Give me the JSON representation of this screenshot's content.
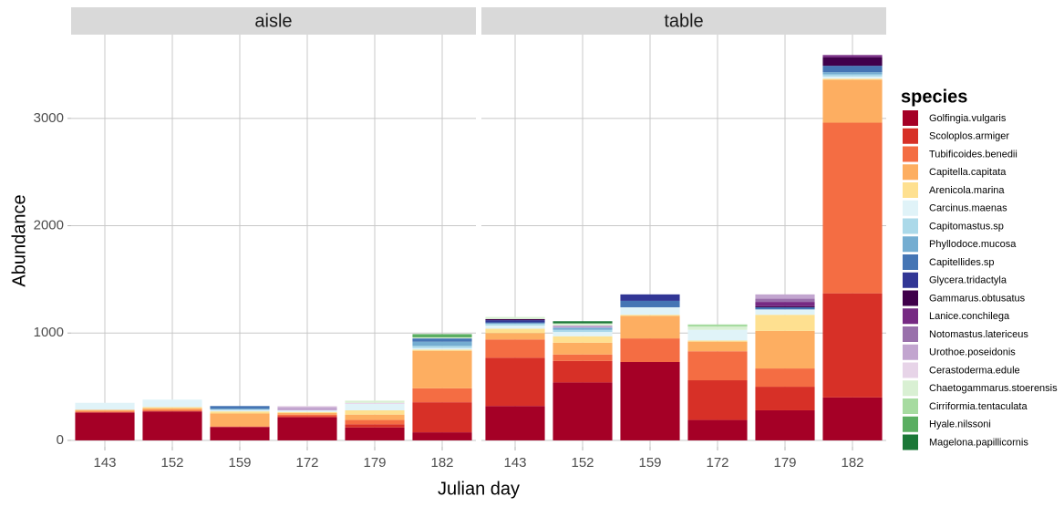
{
  "chart_data": {
    "type": "bar",
    "stacked": true,
    "x_label": "Julian day",
    "y_label": "Abundance",
    "legend_title": "species",
    "facets": [
      "aisle",
      "table"
    ],
    "categories": [
      "143",
      "152",
      "159",
      "172",
      "179",
      "182"
    ],
    "ylim": [
      -60,
      3780
    ],
    "yticks": [
      0,
      1000,
      2000,
      3000
    ],
    "grid": true,
    "series": [
      {
        "name": "Golfingia.vulgaris",
        "color": "#a50026",
        "values": [
          [
            260,
            270,
            125,
            215,
            120,
            75
          ],
          [
            320,
            540,
            730,
            190,
            280,
            400
          ]
        ]
      },
      {
        "name": "Scoloplos.armiger",
        "color": "#d73027",
        "values": [
          [
            0,
            0,
            0,
            10,
            30,
            280
          ],
          [
            450,
            200,
            0,
            370,
            220,
            970
          ]
        ]
      },
      {
        "name": "Tubificoides.benedii",
        "color": "#f46d43",
        "values": [
          [
            10,
            15,
            5,
            15,
            40,
            130
          ],
          [
            170,
            60,
            220,
            270,
            170,
            1590
          ]
        ]
      },
      {
        "name": "Capitella.capitata",
        "color": "#fdae61",
        "values": [
          [
            15,
            15,
            120,
            15,
            50,
            350
          ],
          [
            60,
            110,
            210,
            90,
            350,
            400
          ]
        ]
      },
      {
        "name": "Arenicola.marina",
        "color": "#fee090",
        "values": [
          [
            0,
            10,
            20,
            10,
            40,
            10
          ],
          [
            40,
            60,
            10,
            10,
            150,
            10
          ]
        ]
      },
      {
        "name": "Carcinus.maenas",
        "color": "#e0f3f8",
        "values": [
          [
            65,
            70,
            15,
            15,
            60,
            15
          ],
          [
            30,
            40,
            70,
            100,
            50,
            20
          ]
        ]
      },
      {
        "name": "Capitomastus.sp",
        "color": "#abd9e9",
        "values": [
          [
            0,
            0,
            0,
            0,
            0,
            20
          ],
          [
            20,
            20,
            0,
            0,
            0,
            20
          ]
        ]
      },
      {
        "name": "Phyllodoce.mucosa",
        "color": "#74add1",
        "values": [
          [
            0,
            0,
            10,
            0,
            0,
            40
          ],
          [
            0,
            20,
            0,
            0,
            0,
            20
          ]
        ]
      },
      {
        "name": "Capitellides.sp",
        "color": "#4575b4",
        "values": [
          [
            0,
            0,
            25,
            0,
            0,
            30
          ],
          [
            10,
            0,
            60,
            0,
            20,
            60
          ]
        ]
      },
      {
        "name": "Glycera.tridactyla",
        "color": "#313695",
        "values": [
          [
            0,
            0,
            0,
            0,
            0,
            0
          ],
          [
            20,
            0,
            60,
            0,
            0,
            0
          ]
        ]
      },
      {
        "name": "Gammarus.obtusatus",
        "color": "#40004b",
        "values": [
          [
            0,
            0,
            0,
            0,
            0,
            0
          ],
          [
            10,
            0,
            0,
            0,
            10,
            80
          ]
        ]
      },
      {
        "name": "Lanice.conchilega",
        "color": "#762a83",
        "values": [
          [
            0,
            0,
            0,
            0,
            0,
            0
          ],
          [
            0,
            0,
            0,
            0,
            40,
            20
          ]
        ]
      },
      {
        "name": "Notomastus.latericeus",
        "color": "#9970ab",
        "values": [
          [
            0,
            0,
            0,
            0,
            0,
            0
          ],
          [
            0,
            0,
            0,
            0,
            30,
            0
          ]
        ]
      },
      {
        "name": "Urothoe.poseidonis",
        "color": "#c2a5cf",
        "values": [
          [
            0,
            0,
            0,
            30,
            0,
            0
          ],
          [
            0,
            20,
            0,
            0,
            40,
            0
          ]
        ]
      },
      {
        "name": "Cerastoderma.edule",
        "color": "#e7d4e8",
        "values": [
          [
            0,
            0,
            0,
            10,
            10,
            0
          ],
          [
            0,
            0,
            0,
            0,
            0,
            0
          ]
        ]
      },
      {
        "name": "Chaetogammarus.stoerensis",
        "color": "#d9f0d3",
        "values": [
          [
            0,
            0,
            0,
            0,
            20,
            10
          ],
          [
            20,
            20,
            0,
            30,
            0,
            0
          ]
        ]
      },
      {
        "name": "Cirriformia.tentaculata",
        "color": "#a6dba0",
        "values": [
          [
            0,
            0,
            0,
            0,
            0,
            0
          ],
          [
            0,
            0,
            0,
            20,
            0,
            0
          ]
        ]
      },
      {
        "name": "Hyale.nilssoni",
        "color": "#5aae61",
        "values": [
          [
            0,
            0,
            0,
            0,
            0,
            30
          ],
          [
            0,
            0,
            0,
            0,
            0,
            0
          ]
        ]
      },
      {
        "name": "Magelona.papillicornis",
        "color": "#1b7837",
        "values": [
          [
            0,
            0,
            0,
            0,
            0,
            0
          ],
          [
            0,
            20,
            0,
            0,
            0,
            0
          ]
        ]
      }
    ]
  }
}
